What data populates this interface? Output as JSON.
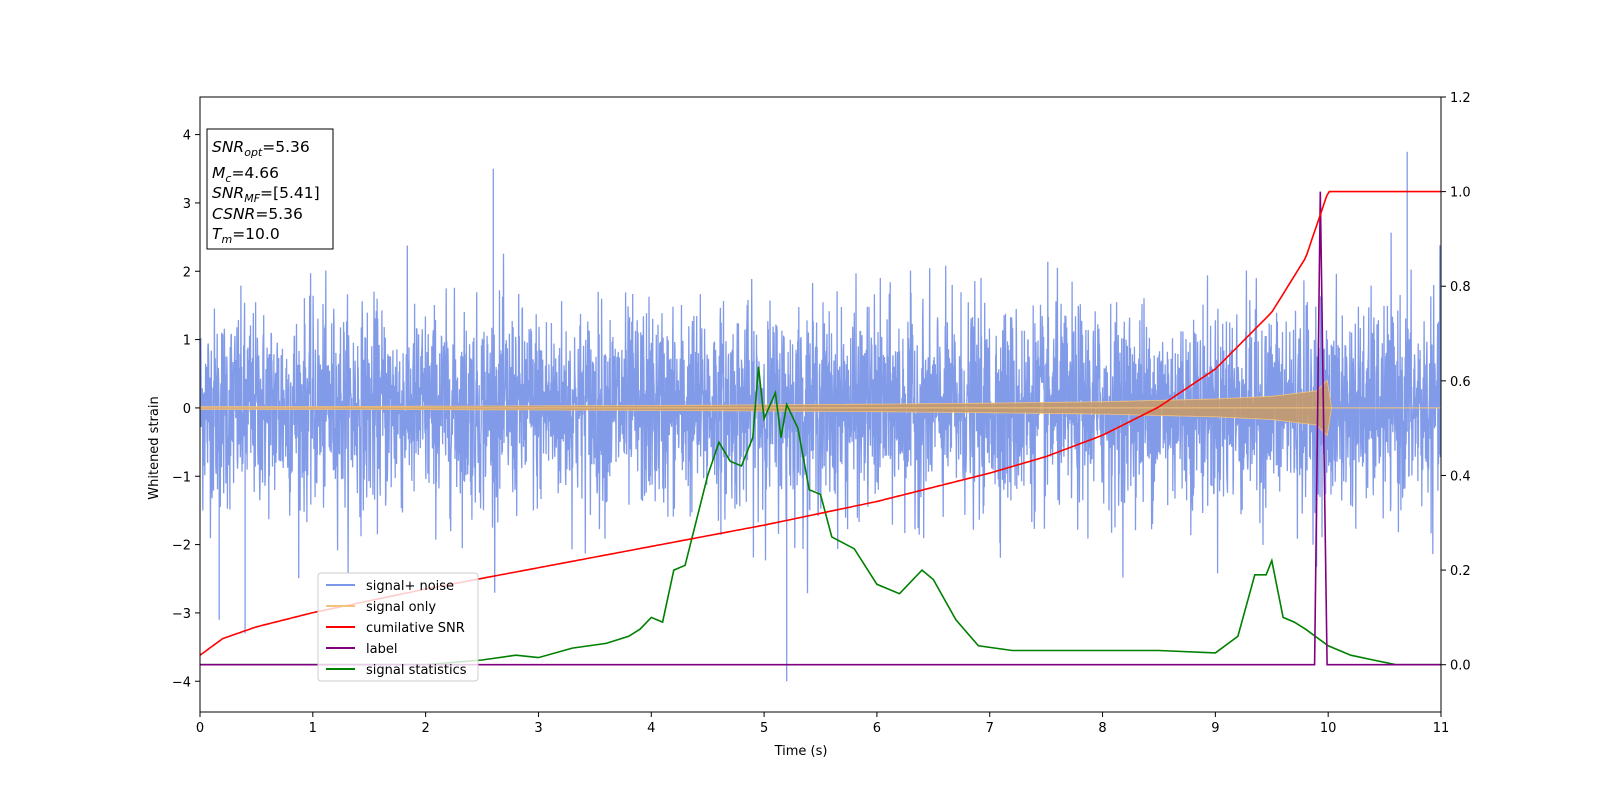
{
  "chart_data": {
    "type": "line",
    "title": "",
    "xlabel": "Time (s)",
    "ylabel": "Whitened strain",
    "y2label": "",
    "xlim": [
      0,
      11
    ],
    "ylim": [
      -4.45,
      4.55
    ],
    "y2lim": [
      -0.1,
      1.2
    ],
    "xticks": [
      "0",
      "1",
      "2",
      "3",
      "4",
      "5",
      "6",
      "7",
      "8",
      "9",
      "10",
      "11"
    ],
    "yticks": [
      "−4",
      "−3",
      "−2",
      "−1",
      "0",
      "1",
      "2",
      "3",
      "4"
    ],
    "y2ticks": [
      "0.0",
      "0.2",
      "0.4",
      "0.6",
      "0.8",
      "1.0",
      "1.2"
    ],
    "grid": false,
    "legend_position": "lower-left",
    "annotation": {
      "snr_opt": {
        "symbol": "SNR",
        "sub": "opt",
        "value": "=5.36"
      },
      "mc": {
        "symbol": "M",
        "sub": "c",
        "value": "=4.66"
      },
      "snr_mf": {
        "symbol": "SNR",
        "sub": "MF",
        "value": "=[5.41]"
      },
      "csnr": {
        "symbol": "CSNR",
        "value": "=5.36"
      },
      "tm": {
        "symbol": "T",
        "sub": "m",
        "value": "=10.0"
      }
    },
    "series": [
      {
        "name": "signal+ noise",
        "axis": "left",
        "color": "#7b96e8",
        "description_values": {
          "x_range": [
            0,
            11
          ],
          "typical_band": [
            -2.0,
            2.2
          ],
          "notable_peaks": [
            [
              2.6,
              3.5
            ],
            [
              10.7,
              3.75
            ],
            [
              5.2,
              -4.0
            ],
            [
              0.4,
              -3.3
            ],
            [
              0.17,
              -3.1
            ]
          ]
        }
      },
      {
        "name": "signal only",
        "axis": "left",
        "color": "#f5c27a",
        "envelope": {
          "x": [
            0,
            1,
            2,
            3,
            4,
            5,
            6,
            7,
            8,
            9,
            9.5,
            9.9,
            10.0,
            10.02,
            11
          ],
          "amp": [
            0.02,
            0.02,
            0.025,
            0.03,
            0.035,
            0.045,
            0.055,
            0.07,
            0.09,
            0.13,
            0.17,
            0.25,
            0.42,
            0.0,
            0.0
          ]
        }
      },
      {
        "name": "cumilative SNR",
        "axis": "right",
        "color": "#ff0000",
        "x": [
          0,
          0.2,
          0.5,
          1,
          2,
          3,
          4,
          5,
          6,
          7,
          7.5,
          8,
          8.5,
          9,
          9.5,
          9.8,
          10.0,
          11
        ],
        "values": [
          0.02,
          0.055,
          0.08,
          0.11,
          0.16,
          0.205,
          0.25,
          0.295,
          0.345,
          0.405,
          0.44,
          0.485,
          0.545,
          0.625,
          0.745,
          0.86,
          1.0,
          1.0
        ]
      },
      {
        "name": "label",
        "axis": "right",
        "color": "#800080",
        "x": [
          0,
          9.88,
          9.93,
          9.99,
          11
        ],
        "values": [
          0.0,
          0.0,
          1.0,
          0.0,
          0.0
        ]
      },
      {
        "name": "signal statistics",
        "axis": "right",
        "color": "#008000",
        "x": [
          0,
          1,
          2,
          2.5,
          2.8,
          3,
          3.3,
          3.6,
          3.8,
          3.9,
          4.0,
          4.1,
          4.2,
          4.3,
          4.5,
          4.6,
          4.7,
          4.8,
          4.9,
          4.95,
          5.0,
          5.1,
          5.15,
          5.2,
          5.3,
          5.4,
          5.5,
          5.6,
          5.8,
          6.0,
          6.2,
          6.4,
          6.5,
          6.7,
          6.9,
          7.2,
          7.6,
          8.0,
          8.5,
          9.0,
          9.2,
          9.35,
          9.45,
          9.5,
          9.6,
          9.7,
          9.8,
          10.0,
          10.2,
          10.4,
          10.6,
          11
        ],
        "values": [
          0.0,
          0.0,
          0.0,
          0.01,
          0.02,
          0.015,
          0.035,
          0.045,
          0.06,
          0.075,
          0.1,
          0.09,
          0.2,
          0.21,
          0.4,
          0.47,
          0.43,
          0.42,
          0.48,
          0.63,
          0.52,
          0.575,
          0.48,
          0.55,
          0.5,
          0.37,
          0.36,
          0.27,
          0.245,
          0.17,
          0.15,
          0.2,
          0.18,
          0.095,
          0.04,
          0.03,
          0.03,
          0.03,
          0.03,
          0.025,
          0.06,
          0.19,
          0.19,
          0.22,
          0.1,
          0.09,
          0.075,
          0.04,
          0.02,
          0.01,
          0.0,
          0.0
        ]
      }
    ]
  }
}
